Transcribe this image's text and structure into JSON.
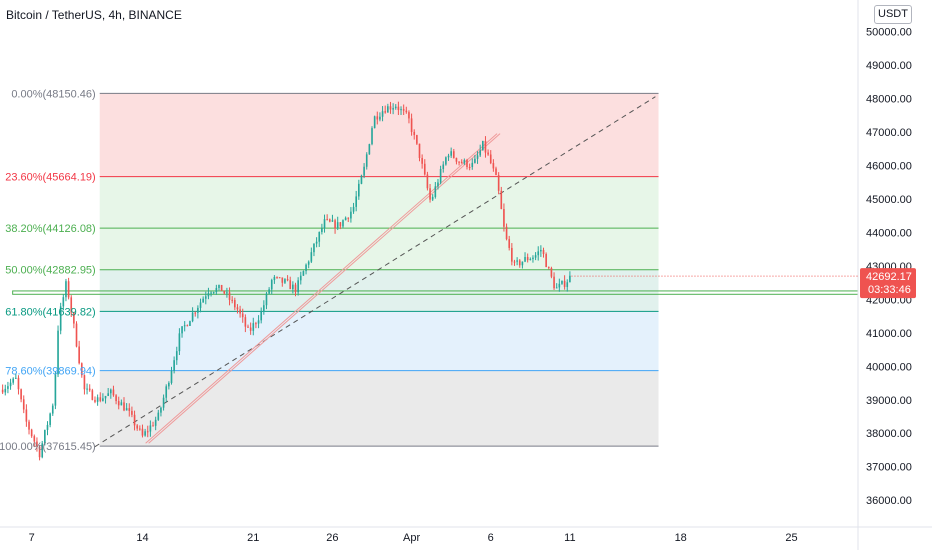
{
  "header": {
    "title": "Bitcoin / TetherUS, 4h, BINANCE",
    "currency": "USDT"
  },
  "colors": {
    "up": "#26a69a",
    "down": "#ef5350",
    "fib_0": "#787b86",
    "fib_236": "#f23645",
    "fib_382": "#4caf50",
    "fib_50": "#4caf50",
    "fib_618": "#089981",
    "fib_786": "#42a5f5",
    "fib_100": "#787b86",
    "zone_red": "#fcd9d9",
    "zone_green": "#e3f4e4",
    "zone_teal": "#dcefea",
    "zone_blue": "#dfeefb",
    "zone_gray": "#e6e6e6",
    "price_tag": "#ef5350"
  },
  "chart_data": {
    "type": "candlestick",
    "title": "Bitcoin / TetherUS, 4h, BINANCE",
    "y_axis": {
      "side": "right",
      "ylim": [
        35200,
        50700
      ],
      "ticks": [
        "36000.00",
        "37000.00",
        "38000.00",
        "39000.00",
        "40000.00",
        "41000.00",
        "42000.00",
        "43000.00",
        "44000.00",
        "45000.00",
        "46000.00",
        "47000.00",
        "48000.00",
        "49000.00",
        "50000.00"
      ]
    },
    "x_axis": {
      "ticks": [
        {
          "label": "7",
          "t": 1.0
        },
        {
          "label": "14",
          "t": 8.0
        },
        {
          "label": "21",
          "t": 15.0
        },
        {
          "label": "26",
          "t": 20.0
        },
        {
          "label": "Apr",
          "t": 25.0
        },
        {
          "label": "6",
          "t": 30.0
        },
        {
          "label": "11",
          "t": 35.0
        },
        {
          "label": "18",
          "t": 42.0
        },
        {
          "label": "25",
          "t": 49.0
        }
      ],
      "range": [
        -1.0,
        53.2
      ]
    },
    "fibonacci": {
      "t_start": 5.3,
      "t_end": 40.6,
      "levels": [
        {
          "label": "0.00%(48150.46)",
          "price": 48150.46,
          "color_key": "fib_0"
        },
        {
          "label": "23.60%(45664.19)",
          "price": 45664.19,
          "color_key": "fib_236"
        },
        {
          "label": "38.20%(44126.08)",
          "price": 44126.08,
          "color_key": "fib_382"
        },
        {
          "label": "50.00%(42882.95)",
          "price": 42882.95,
          "color_key": "fib_50"
        },
        {
          "label": "61.80%(41639.82)",
          "price": 41639.82,
          "color_key": "fib_618"
        },
        {
          "label": "78.60%(39869.94)",
          "price": 39869.94,
          "color_key": "fib_786"
        },
        {
          "label": "100.00%(37615.45)",
          "price": 37615.45,
          "color_key": "fib_100"
        }
      ],
      "zones": [
        {
          "from": 48150.46,
          "to": 45664.19,
          "color_key": "zone_red"
        },
        {
          "from": 45664.19,
          "to": 42882.95,
          "color_key": "zone_green"
        },
        {
          "from": 42882.95,
          "to": 41639.82,
          "color_key": "zone_teal"
        },
        {
          "from": 41639.82,
          "to": 39869.94,
          "color_key": "zone_blue"
        },
        {
          "from": 39869.94,
          "to": 37615.45,
          "color_key": "zone_gray"
        }
      ]
    },
    "trend_dashed": {
      "t1": 5.0,
      "p1": 37600,
      "t2": 40.4,
      "p2": 48050
    },
    "trend_channel": {
      "t1": 8.2,
      "p1": 37700,
      "t2": 30.4,
      "p2": 46950
    },
    "support_box": {
      "t1": -0.2,
      "t2": 53.2,
      "p_top": 42250,
      "p_bottom": 42150
    },
    "current_price": {
      "value": 42692.17,
      "label": "42692.17",
      "countdown": "03:33:46"
    },
    "anchors": [
      [
        -1.0,
        39300
      ],
      [
        0.0,
        39600
      ],
      [
        0.6,
        38400
      ],
      [
        1.5,
        37400
      ],
      [
        2.4,
        39000
      ],
      [
        2.7,
        41400
      ],
      [
        3.2,
        42500
      ],
      [
        3.8,
        40800
      ],
      [
        4.3,
        39300
      ],
      [
        5.2,
        39000
      ],
      [
        6.0,
        39200
      ],
      [
        7.0,
        38700
      ],
      [
        8.0,
        37900
      ],
      [
        9.0,
        38500
      ],
      [
        9.6,
        39500
      ],
      [
        10.4,
        41000
      ],
      [
        11.2,
        41600
      ],
      [
        12.2,
        42300
      ],
      [
        13.0,
        42300
      ],
      [
        14.0,
        41700
      ],
      [
        14.7,
        41000
      ],
      [
        15.5,
        41600
      ],
      [
        16.2,
        42600
      ],
      [
        17.0,
        42500
      ],
      [
        17.7,
        42300
      ],
      [
        18.6,
        43300
      ],
      [
        19.5,
        44300
      ],
      [
        20.4,
        44200
      ],
      [
        21.3,
        44700
      ],
      [
        22.0,
        45900
      ],
      [
        22.6,
        47400
      ],
      [
        23.3,
        47700
      ],
      [
        24.0,
        47800
      ],
      [
        24.8,
        47400
      ],
      [
        25.5,
        46300
      ],
      [
        26.2,
        44900
      ],
      [
        26.7,
        45600
      ],
      [
        27.3,
        46400
      ],
      [
        28.1,
        46100
      ],
      [
        28.9,
        46000
      ],
      [
        29.5,
        46600
      ],
      [
        29.9,
        46200
      ],
      [
        30.4,
        45500
      ],
      [
        30.9,
        43900
      ],
      [
        31.5,
        43000
      ],
      [
        32.2,
        43200
      ],
      [
        32.8,
        43300
      ],
      [
        33.2,
        43500
      ],
      [
        33.7,
        42800
      ],
      [
        34.1,
        42300
      ],
      [
        34.7,
        42500
      ],
      [
        35.1,
        42700
      ]
    ]
  }
}
